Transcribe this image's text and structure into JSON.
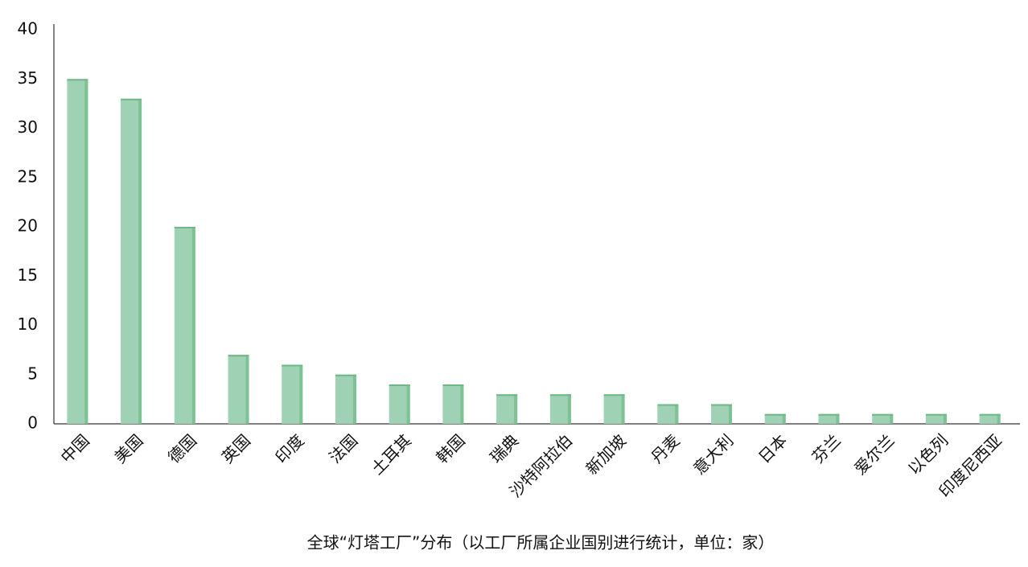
{
  "chart_data": {
    "type": "bar",
    "title": "全球“灯塔工厂”分布（以工厂所属企业国别进行统计，单位：家）",
    "categories": [
      "中国",
      "美国",
      "德国",
      "英国",
      "印度",
      "法国",
      "土耳其",
      "韩国",
      "瑞典",
      "沙特阿拉伯",
      "新加坡",
      "丹麦",
      "意大利",
      "日本",
      "芬兰",
      "爱尔兰",
      "以色列",
      "印度尼西亚"
    ],
    "values": [
      35,
      33,
      20,
      7,
      6,
      5,
      4,
      4,
      3,
      3,
      3,
      2,
      2,
      1,
      1,
      1,
      1,
      1
    ],
    "color": "#9fd1b4",
    "ylim": [
      0,
      40
    ],
    "yticks": [
      0,
      5,
      10,
      15,
      20,
      25,
      30,
      35,
      40
    ],
    "grid": false
  }
}
